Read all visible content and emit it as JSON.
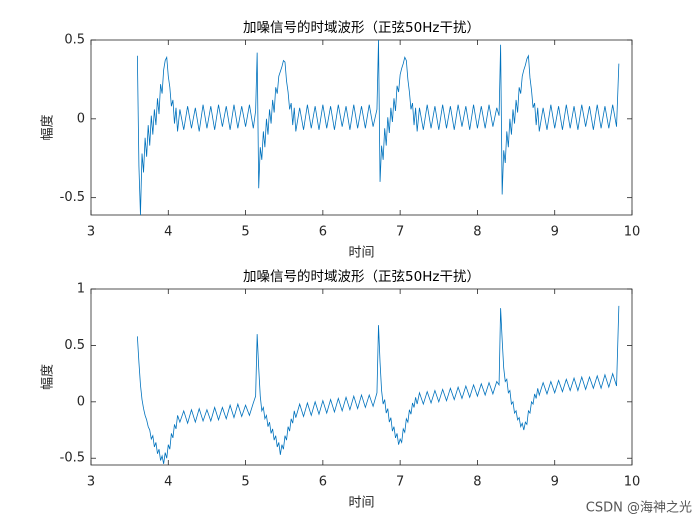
{
  "chart_data": [
    {
      "type": "line",
      "title": "加噪信号的时域波形（正弦50Hz干扰）",
      "xlabel": "时间",
      "ylabel": "幅度",
      "xlim": [
        3,
        10
      ],
      "xticks": [
        3,
        4,
        5,
        6,
        7,
        8,
        9,
        10
      ],
      "ylim": [
        -0.61,
        0.5
      ],
      "yticks": [
        -0.5,
        0,
        0.5
      ],
      "x": [
        3.6,
        3.62,
        3.64,
        3.66,
        3.68,
        3.7,
        3.72,
        3.74,
        3.76,
        3.78,
        3.8,
        3.82,
        3.84,
        3.86,
        3.88,
        3.9,
        3.92,
        3.94,
        3.96,
        3.98,
        4.0,
        4.02,
        4.04,
        4.06,
        4.08,
        4.1,
        4.12,
        4.15,
        4.2,
        4.25,
        4.3,
        4.35,
        4.4,
        4.45,
        4.5,
        4.55,
        4.6,
        4.65,
        4.7,
        4.75,
        4.8,
        4.85,
        4.9,
        4.95,
        5.0,
        5.05,
        5.1,
        5.13,
        5.15,
        5.17,
        5.19,
        5.21,
        5.23,
        5.25,
        5.27,
        5.29,
        5.31,
        5.33,
        5.35,
        5.37,
        5.39,
        5.41,
        5.43,
        5.45,
        5.47,
        5.49,
        5.51,
        5.53,
        5.55,
        5.57,
        5.59,
        5.61,
        5.63,
        5.65,
        5.7,
        5.75,
        5.8,
        5.85,
        5.9,
        5.95,
        6.0,
        6.05,
        6.1,
        6.15,
        6.2,
        6.25,
        6.3,
        6.35,
        6.4,
        6.45,
        6.5,
        6.55,
        6.6,
        6.65,
        6.7,
        6.72,
        6.74,
        6.76,
        6.78,
        6.8,
        6.82,
        6.84,
        6.86,
        6.88,
        6.9,
        6.92,
        6.94,
        6.96,
        6.98,
        7.0,
        7.02,
        7.04,
        7.06,
        7.08,
        7.1,
        7.12,
        7.14,
        7.16,
        7.18,
        7.2,
        7.22,
        7.25,
        7.3,
        7.35,
        7.4,
        7.45,
        7.5,
        7.55,
        7.6,
        7.65,
        7.7,
        7.75,
        7.8,
        7.85,
        7.9,
        7.95,
        8.0,
        8.05,
        8.1,
        8.15,
        8.2,
        8.25,
        8.28,
        8.3,
        8.32,
        8.34,
        8.36,
        8.38,
        8.4,
        8.42,
        8.44,
        8.46,
        8.48,
        8.5,
        8.52,
        8.54,
        8.56,
        8.58,
        8.6,
        8.62,
        8.64,
        8.66,
        8.68,
        8.7,
        8.72,
        8.74,
        8.76,
        8.78,
        8.8,
        8.85,
        8.9,
        8.95,
        9.0,
        9.05,
        9.1,
        9.15,
        9.2,
        9.25,
        9.3,
        9.35,
        9.4,
        9.45,
        9.5,
        9.55,
        9.6,
        9.65,
        9.7,
        9.75,
        9.8,
        9.83
      ],
      "series": [
        {
          "color": "#0072bd",
          "values": [
            0.4,
            -0.3,
            -0.61,
            -0.22,
            -0.34,
            -0.12,
            -0.24,
            -0.04,
            -0.17,
            0.02,
            -0.1,
            0.06,
            -0.04,
            0.13,
            0.03,
            0.22,
            0.16,
            0.31,
            0.37,
            0.39,
            0.27,
            0.2,
            0.08,
            0.12,
            -0.03,
            0.07,
            -0.08,
            0.06,
            -0.07,
            0.08,
            -0.06,
            0.07,
            -0.08,
            0.09,
            -0.06,
            0.08,
            -0.07,
            0.09,
            -0.05,
            0.08,
            -0.07,
            0.09,
            -0.06,
            0.08,
            -0.05,
            0.09,
            -0.06,
            0.05,
            0.42,
            -0.44,
            -0.18,
            -0.26,
            -0.08,
            -0.18,
            0,
            -0.1,
            0.06,
            -0.03,
            0.12,
            0.04,
            0.2,
            0.16,
            0.27,
            0.3,
            0.33,
            0.37,
            0.36,
            0.24,
            0.17,
            0.06,
            0.1,
            -0.04,
            0.07,
            -0.08,
            0.07,
            -0.07,
            0.09,
            -0.06,
            0.08,
            -0.07,
            0.09,
            -0.06,
            0.08,
            -0.07,
            0.09,
            -0.05,
            0.08,
            -0.07,
            0.09,
            -0.06,
            0.08,
            -0.06,
            0.09,
            -0.05,
            0.06,
            0.5,
            -0.4,
            -0.17,
            -0.26,
            -0.06,
            -0.17,
            0.01,
            -0.09,
            0.07,
            -0.02,
            0.13,
            0.05,
            0.21,
            0.17,
            0.28,
            0.32,
            0.35,
            0.39,
            0.37,
            0.25,
            0.17,
            0.06,
            0.1,
            -0.04,
            0.07,
            -0.08,
            0.07,
            -0.07,
            0.09,
            -0.06,
            0.08,
            -0.07,
            0.09,
            -0.06,
            0.08,
            -0.07,
            0.09,
            -0.05,
            0.08,
            -0.07,
            0.09,
            -0.06,
            0.08,
            -0.06,
            0.09,
            -0.05,
            0.07,
            0.02,
            0.47,
            -0.48,
            -0.2,
            -0.28,
            -0.08,
            -0.18,
            0,
            -0.1,
            0.06,
            -0.03,
            0.12,
            0.04,
            0.2,
            0.16,
            0.27,
            0.31,
            0.34,
            0.38,
            0.4,
            0.26,
            0.18,
            0.07,
            0.1,
            -0.04,
            0.07,
            -0.08,
            0.07,
            -0.07,
            0.09,
            -0.06,
            0.08,
            -0.07,
            0.09,
            -0.06,
            0.08,
            -0.07,
            0.09,
            -0.05,
            0.08,
            -0.07,
            0.09,
            -0.06,
            0.08,
            -0.06,
            0.09,
            -0.05,
            0.35
          ]
        }
      ]
    },
    {
      "type": "line",
      "title": "加噪信号的时域波形（正弦50Hz干扰）",
      "xlabel": "时间",
      "ylabel": "幅度",
      "xlim": [
        3,
        10
      ],
      "xticks": [
        3,
        4,
        5,
        6,
        7,
        8,
        9,
        10
      ],
      "ylim": [
        -0.56,
        1
      ],
      "yticks": [
        -0.5,
        0,
        0.5,
        1
      ],
      "x": [
        3.6,
        3.62,
        3.64,
        3.66,
        3.68,
        3.7,
        3.72,
        3.74,
        3.76,
        3.78,
        3.8,
        3.82,
        3.84,
        3.86,
        3.88,
        3.9,
        3.92,
        3.94,
        3.96,
        3.98,
        4.0,
        4.02,
        4.04,
        4.06,
        4.08,
        4.1,
        4.12,
        4.15,
        4.2,
        4.25,
        4.3,
        4.35,
        4.4,
        4.45,
        4.5,
        4.55,
        4.6,
        4.65,
        4.7,
        4.75,
        4.8,
        4.85,
        4.9,
        4.95,
        5.0,
        5.05,
        5.1,
        5.13,
        5.15,
        5.17,
        5.19,
        5.21,
        5.23,
        5.25,
        5.27,
        5.29,
        5.31,
        5.33,
        5.35,
        5.37,
        5.39,
        5.41,
        5.43,
        5.45,
        5.47,
        5.49,
        5.51,
        5.53,
        5.55,
        5.57,
        5.59,
        5.61,
        5.63,
        5.65,
        5.7,
        5.75,
        5.8,
        5.85,
        5.9,
        5.95,
        6.0,
        6.05,
        6.1,
        6.15,
        6.2,
        6.25,
        6.3,
        6.35,
        6.4,
        6.45,
        6.5,
        6.55,
        6.6,
        6.65,
        6.7,
        6.72,
        6.74,
        6.76,
        6.78,
        6.8,
        6.82,
        6.84,
        6.86,
        6.88,
        6.9,
        6.92,
        6.94,
        6.96,
        6.98,
        7.0,
        7.02,
        7.04,
        7.06,
        7.08,
        7.1,
        7.12,
        7.14,
        7.16,
        7.18,
        7.2,
        7.22,
        7.25,
        7.3,
        7.35,
        7.4,
        7.45,
        7.5,
        7.55,
        7.6,
        7.65,
        7.7,
        7.75,
        7.8,
        7.85,
        7.9,
        7.95,
        8.0,
        8.05,
        8.1,
        8.15,
        8.2,
        8.25,
        8.28,
        8.3,
        8.32,
        8.34,
        8.36,
        8.38,
        8.4,
        8.42,
        8.44,
        8.46,
        8.48,
        8.5,
        8.52,
        8.54,
        8.56,
        8.58,
        8.6,
        8.62,
        8.64,
        8.66,
        8.68,
        8.7,
        8.72,
        8.74,
        8.76,
        8.78,
        8.8,
        8.85,
        8.9,
        8.95,
        9.0,
        9.05,
        9.1,
        9.15,
        9.2,
        9.25,
        9.3,
        9.35,
        9.4,
        9.45,
        9.5,
        9.55,
        9.6,
        9.65,
        9.7,
        9.75,
        9.8,
        9.83
      ],
      "series": [
        {
          "color": "#0072bd",
          "values": [
            0.58,
            0.35,
            0.15,
            0.02,
            -0.06,
            -0.12,
            -0.16,
            -0.22,
            -0.25,
            -0.33,
            -0.3,
            -0.4,
            -0.36,
            -0.46,
            -0.42,
            -0.52,
            -0.48,
            -0.55,
            -0.45,
            -0.5,
            -0.38,
            -0.42,
            -0.28,
            -0.32,
            -0.2,
            -0.24,
            -0.12,
            -0.18,
            -0.08,
            -0.19,
            -0.07,
            -0.18,
            -0.06,
            -0.17,
            -0.07,
            -0.17,
            -0.05,
            -0.16,
            -0.05,
            -0.15,
            -0.03,
            -0.14,
            -0.02,
            -0.13,
            -0.03,
            -0.12,
            -0.01,
            0.05,
            0.6,
            0.3,
            0.05,
            -0.08,
            -0.05,
            -0.15,
            -0.12,
            -0.22,
            -0.18,
            -0.28,
            -0.24,
            -0.34,
            -0.3,
            -0.4,
            -0.36,
            -0.47,
            -0.38,
            -0.42,
            -0.3,
            -0.34,
            -0.22,
            -0.26,
            -0.15,
            -0.19,
            -0.08,
            -0.14,
            -0.02,
            -0.13,
            -0.01,
            -0.12,
            0,
            -0.11,
            0.01,
            -0.1,
            0.02,
            -0.09,
            0.03,
            -0.08,
            0.04,
            -0.07,
            0.05,
            -0.06,
            0.06,
            -0.05,
            0.06,
            -0.04,
            0.08,
            0.68,
            0.35,
            0.1,
            -0.02,
            0.02,
            -0.1,
            -0.06,
            -0.18,
            -0.14,
            -0.26,
            -0.22,
            -0.32,
            -0.28,
            -0.38,
            -0.33,
            -0.36,
            -0.24,
            -0.27,
            -0.15,
            -0.18,
            -0.07,
            -0.11,
            -0.01,
            -0.05,
            0.04,
            -0.02,
            0.08,
            -0.02,
            0.09,
            -0.01,
            0.1,
            0,
            0.11,
            0.01,
            0.12,
            0.02,
            0.13,
            0.03,
            0.14,
            0.04,
            0.15,
            0.05,
            0.16,
            0.06,
            0.17,
            0.07,
            0.18,
            0.15,
            0.83,
            0.55,
            0.3,
            0.18,
            0.2,
            0.08,
            0.1,
            -0.02,
            0,
            -0.1,
            -0.08,
            -0.16,
            -0.14,
            -0.22,
            -0.19,
            -0.25,
            -0.18,
            -0.2,
            -0.08,
            -0.1,
            0,
            -0.02,
            0.07,
            0.03,
            0.12,
            0.06,
            0.17,
            0.07,
            0.18,
            0.08,
            0.19,
            0.09,
            0.2,
            0.1,
            0.21,
            0.1,
            0.22,
            0.11,
            0.22,
            0.12,
            0.23,
            0.12,
            0.24,
            0.13,
            0.25,
            0.14,
            0.85
          ]
        }
      ]
    }
  ],
  "watermark": "CSDN @海神之光"
}
